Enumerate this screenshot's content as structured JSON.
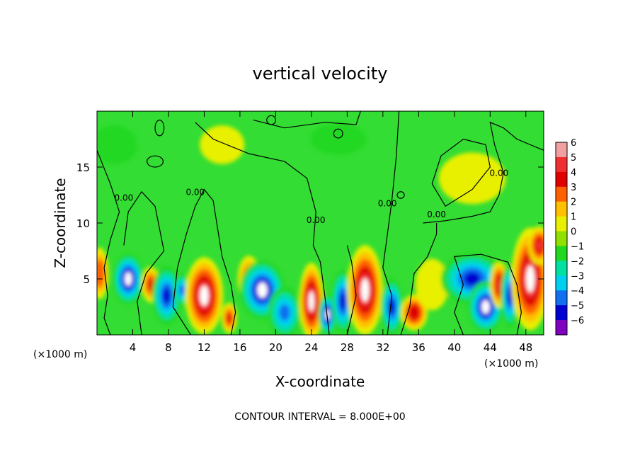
{
  "chart_data": {
    "type": "heatmap",
    "title": "vertical velocity",
    "xlabel": "X-coordinate",
    "ylabel": "Z-coordinate",
    "x_unit_label": "(×1000 m)",
    "y_unit_label": "(×1000 m)",
    "footer": "CONTOUR INTERVAL = 8.000E+00",
    "xlim": [
      0,
      50
    ],
    "ylim": [
      0,
      20
    ],
    "x_ticks": [
      4,
      8,
      12,
      16,
      20,
      24,
      28,
      32,
      36,
      40,
      44,
      48
    ],
    "y_ticks": [
      5,
      10,
      15
    ],
    "zero_contour_label": "0.00",
    "zero_contour_label_positions": [
      [
        3,
        12.0
      ],
      [
        11,
        12.5
      ],
      [
        24.5,
        10.0
      ],
      [
        32.5,
        11.5
      ],
      [
        38,
        10.5
      ],
      [
        45,
        14.2
      ]
    ],
    "colorbar": {
      "ticks": [
        6,
        5,
        4,
        3,
        2,
        1,
        0,
        -1,
        -2,
        -3,
        -4,
        -5,
        -6
      ],
      "tick_labels": [
        "6",
        "5",
        "4",
        "3",
        "2",
        "1",
        "0",
        "−1",
        "−2",
        "−3",
        "−4",
        "−5",
        "−6"
      ],
      "colors": [
        "#f0a0a0",
        "#f03030",
        "#e00000",
        "#ff6000",
        "#ffc000",
        "#e8f000",
        "#90e000",
        "#20d820",
        "#00e0a0",
        "#00d0f0",
        "#1070f0",
        "#0000d0",
        "#8000c0"
      ]
    },
    "field_background": "#33dd33",
    "cells": [
      {
        "x": 0.3,
        "z": 5.5,
        "rx": 0.8,
        "rz": 2.0,
        "w": 3.5
      },
      {
        "x": 3.5,
        "z": 5.0,
        "rx": 1.4,
        "rz": 2.0,
        "w": -5.5
      },
      {
        "x": 6.0,
        "z": 4.5,
        "rx": 0.8,
        "rz": 1.4,
        "w": 4.0
      },
      {
        "x": 7.8,
        "z": 3.5,
        "rx": 1.3,
        "rz": 2.3,
        "w": -4.5
      },
      {
        "x": 9.5,
        "z": 4.0,
        "rx": 0.8,
        "rz": 1.3,
        "w": -4.0
      },
      {
        "x": 12.0,
        "z": 3.5,
        "rx": 1.7,
        "rz": 3.0,
        "w": 6.0
      },
      {
        "x": 14.8,
        "z": 1.5,
        "rx": 0.7,
        "rz": 1.2,
        "w": 4.0
      },
      {
        "x": 17.0,
        "z": 5.0,
        "rx": 1.0,
        "rz": 1.8,
        "w": 3.5
      },
      {
        "x": 18.5,
        "z": 4.0,
        "rx": 2.0,
        "rz": 2.3,
        "w": -5.5
      },
      {
        "x": 21.0,
        "z": 2.0,
        "rx": 1.5,
        "rz": 2.0,
        "w": -4.0
      },
      {
        "x": 24.0,
        "z": 3.0,
        "rx": 1.1,
        "rz": 3.0,
        "w": 5.5
      },
      {
        "x": 25.8,
        "z": 1.8,
        "rx": 0.8,
        "rz": 1.6,
        "w": -6.0
      },
      {
        "x": 27.5,
        "z": 3.0,
        "rx": 1.0,
        "rz": 2.5,
        "w": -4.5
      },
      {
        "x": 30.0,
        "z": 4.0,
        "rx": 1.6,
        "rz": 3.5,
        "w": 6.0
      },
      {
        "x": 33.0,
        "z": 2.5,
        "rx": 1.0,
        "rz": 2.2,
        "w": -4.5
      },
      {
        "x": 35.5,
        "z": 2.0,
        "rx": 1.2,
        "rz": 1.4,
        "w": 4.5
      },
      {
        "x": 37.5,
        "z": 4.5,
        "rx": 1.5,
        "rz": 2.0,
        "w": 1.5
      },
      {
        "x": 42.0,
        "z": 5.0,
        "rx": 2.8,
        "rz": 2.0,
        "w": -5.0
      },
      {
        "x": 43.5,
        "z": 2.5,
        "rx": 1.6,
        "rz": 2.0,
        "w": -6.0
      },
      {
        "x": 45.0,
        "z": 4.5,
        "rx": 0.8,
        "rz": 1.8,
        "w": 5.0
      },
      {
        "x": 46.2,
        "z": 3.5,
        "rx": 0.8,
        "rz": 2.5,
        "w": -5.0
      },
      {
        "x": 48.5,
        "z": 5.0,
        "rx": 1.7,
        "rz": 4.0,
        "w": 6.0
      },
      {
        "x": 49.5,
        "z": 8.0,
        "rx": 1.0,
        "rz": 1.5,
        "w": 5.0
      },
      {
        "x": 42.0,
        "z": 14.0,
        "rx": 3.0,
        "rz": 2.0,
        "w": 0.6
      },
      {
        "x": 14.0,
        "z": 17.0,
        "rx": 2.0,
        "rz": 1.5,
        "w": 0.6
      },
      {
        "x": 27.0,
        "z": 17.5,
        "rx": 2.5,
        "rz": 1.2,
        "w": -0.6
      },
      {
        "x": 2.0,
        "z": 17.0,
        "rx": 2.0,
        "rz": 1.5,
        "w": -0.5
      }
    ]
  }
}
